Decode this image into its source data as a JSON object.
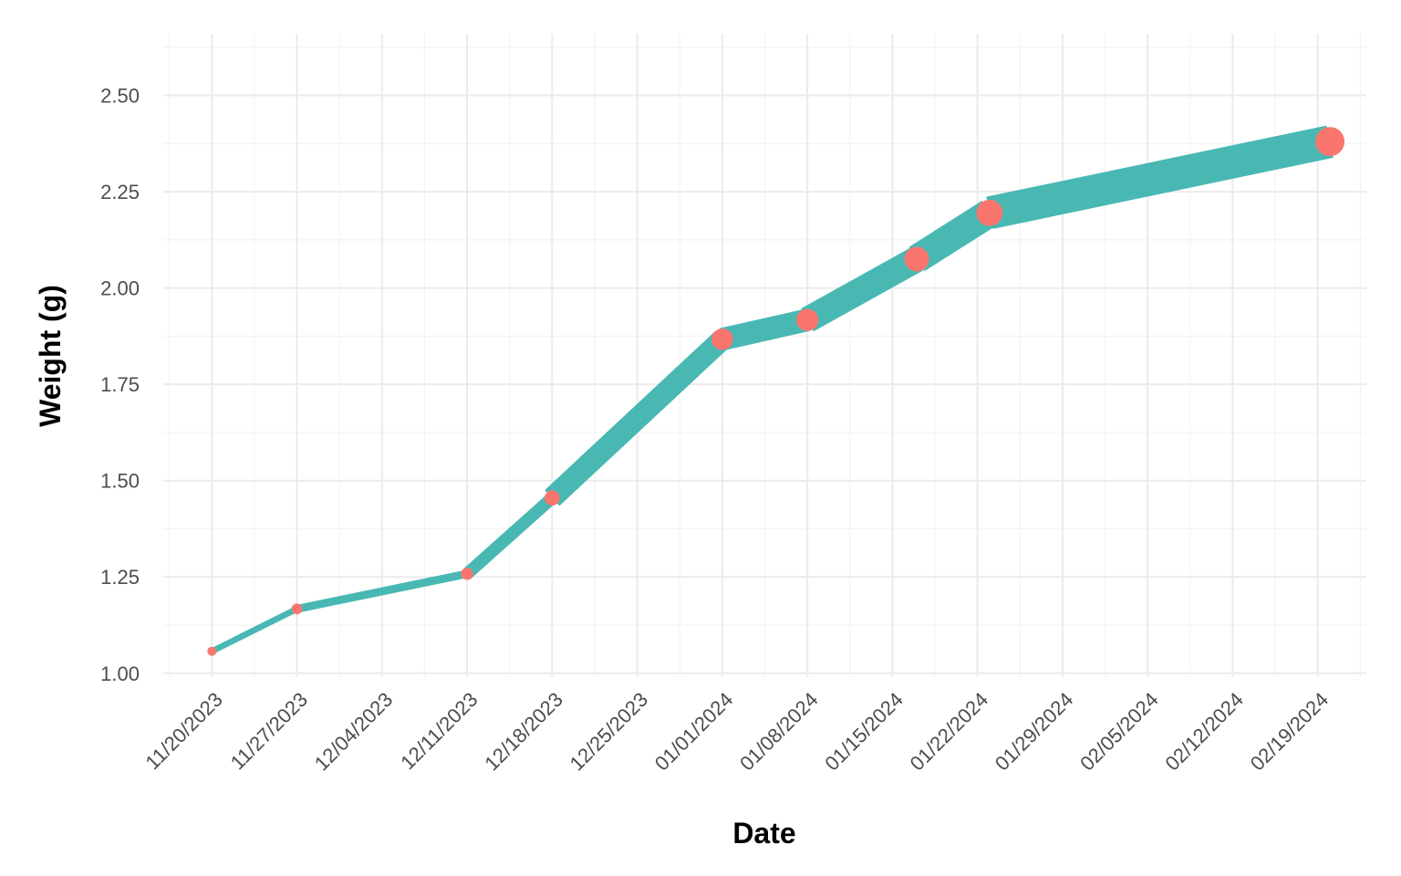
{
  "chart_data": {
    "type": "line",
    "title": "",
    "xlabel": "Date",
    "ylabel": "Weight (g)",
    "x_ticks": [
      "11/20/2023",
      "11/27/2023",
      "12/04/2023",
      "12/11/2023",
      "12/18/2023",
      "12/25/2023",
      "01/01/2024",
      "01/08/2024",
      "01/15/2024",
      "01/22/2024",
      "01/29/2024",
      "02/05/2024",
      "02/12/2024",
      "02/19/2024"
    ],
    "x_range": [
      "11/16/2023",
      "02/23/2024"
    ],
    "y_ticks": [
      "1.00",
      "1.25",
      "1.50",
      "1.75",
      "2.00",
      "2.25",
      "2.50"
    ],
    "ylim": [
      0.99,
      2.66
    ],
    "grid": true,
    "legend": "none",
    "series": [
      {
        "x": [
          "11/20/2023",
          "11/27/2023",
          "12/11/2023",
          "12/18/2023",
          "01/01/2024",
          "01/08/2024",
          "01/17/2024",
          "01/23/2024",
          "02/20/2024"
        ],
        "y": [
          1.057,
          1.167,
          1.258,
          1.455,
          1.867,
          1.917,
          2.075,
          2.195,
          2.38
        ],
        "line_color": "#39b2ad",
        "point_color": "#f8766d"
      }
    ]
  }
}
